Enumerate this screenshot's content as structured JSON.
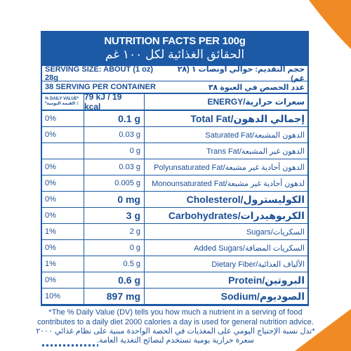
{
  "header": {
    "title": "NUTRITION FACTS PER 100g",
    "title_ar": "الحقائق الغذائية لكل ١٠٠ غم"
  },
  "serving": {
    "size": "SERVING SIZE: ABOUT (1 oz) 28g",
    "size_ar": "حجم التقديم: حوالي أونصات ١ (٢٨ غم)",
    "count": "38 SERVING PER CONTAINER",
    "count_ar": "عدد الحصص في العبوة ٣٨"
  },
  "energy": {
    "dv_label": "% DAILY VALUE*",
    "dv_label_ar": "٪ القيمة اليومية*",
    "value": "79 kJ / 19 kcal",
    "label": "ENERGY/سعرات حرارية"
  },
  "rows": [
    {
      "dv": "0%",
      "amount": "0.1 g",
      "name": "Total Fat/إجمالي الدهون",
      "bold": true
    },
    {
      "dv": "0%",
      "amount": "0.03 g",
      "name": "Saturated Fat/الدهون المشبعة",
      "bold": false
    },
    {
      "amount": "0 g",
      "name": "Trans Fat/الدهون غير المشبعة",
      "bold": false
    },
    {
      "dv": "0%",
      "amount": "0.03 g",
      "name": "Polyunsaturated Fat/الدهون أحادية غير مشبعة",
      "bold": false
    },
    {
      "dv": "0%",
      "amount": "0.005 g",
      "name": "Monounsaturated Fat/لدهون أحادية غير مشبعة",
      "bold": false
    },
    {
      "dv": "0%",
      "amount": "0 mg",
      "name": "Cholesterol/الكوليسترول",
      "bold": true
    },
    {
      "dv": "0%",
      "amount": "3 g",
      "name": "Carbohydrates/الكربوهيدرات",
      "bold": true
    },
    {
      "dv": "1%",
      "amount": "2 g",
      "name": "Sugars/السكريات",
      "bold": false
    },
    {
      "dv": "0%",
      "amount": "0 g",
      "name": "Added Sugars/السكريات المضافة",
      "bold": false
    },
    {
      "dv": "1%",
      "amount": "0.5 g",
      "name": "Dietary Fiber/الألياف الغذائية",
      "bold": false
    },
    {
      "dv": "0%",
      "amount": "0.6 g",
      "name": "Protein/البروتين",
      "bold": true
    },
    {
      "dv": "10%",
      "amount": "897 mg",
      "name": "Sodium/الصوديوم",
      "bold": true
    }
  ],
  "footnote": {
    "en": [
      "*The % Daily Value (DV) tells you how much a nutrient in a serving of food",
      "contributes to a daily diet 2000 calories a day is used for general nutrition advice."
    ],
    "ar": [
      "*تدل نسبة الإحتياج اليومي على المغذيات في الحصة الواحدة مبنية على نظام غذائي ٢٠٠٠",
      "سعرة حرارية يومية تستخدم لنصائح التغذية العامة."
    ]
  }
}
